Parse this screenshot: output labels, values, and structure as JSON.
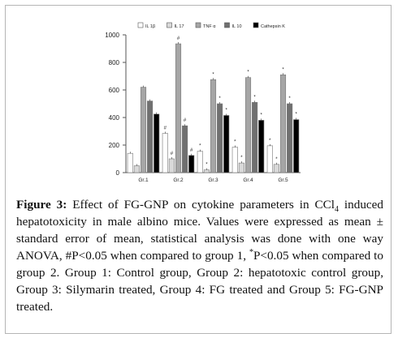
{
  "chart_data": {
    "type": "bar",
    "categories": [
      "Gr.1",
      "Gr.2",
      "Gr.3",
      "Gr.4",
      "Gr.5"
    ],
    "series": [
      {
        "name": "IL 1β",
        "values": [
          140,
          285,
          155,
          185,
          195
        ],
        "marks": [
          "",
          "#",
          "*",
          "*",
          "*"
        ],
        "color": "#ffffff"
      },
      {
        "name": "IL 17",
        "values": [
          50,
          100,
          20,
          70,
          60
        ],
        "marks": [
          "",
          "#",
          "*",
          "*",
          "*"
        ],
        "color": "#d9d9d9"
      },
      {
        "name": "TNF α",
        "values": [
          620,
          935,
          675,
          690,
          710
        ],
        "marks": [
          "",
          "#",
          "*",
          "*",
          "*"
        ],
        "color": "#a6a6a6"
      },
      {
        "name": "IL 10",
        "values": [
          520,
          340,
          500,
          510,
          500
        ],
        "marks": [
          "",
          "#",
          "*",
          "*",
          "*"
        ],
        "color": "#707070"
      },
      {
        "name": "Cathepsin K",
        "values": [
          425,
          125,
          415,
          380,
          385
        ],
        "marks": [
          "",
          "#",
          "*",
          "*",
          "*"
        ],
        "color": "#000000"
      }
    ],
    "y_ticks": [
      "0",
      "200",
      "400",
      "600",
      "800",
      "1000"
    ],
    "ylim": [
      0,
      1000
    ],
    "legend_position": "top",
    "grid": false
  },
  "caption": {
    "label": "Figure 3:",
    "seg1": " Effect of FG-GNP on cytokine parameters in CCl",
    "sub": "4",
    "seg2": " induced hepatotoxicity in male albino mice. Values were expressed as mean ± standard error of mean, statistical analysis was done with one way ANOVA, #P<0.05 when compared to group 1, ",
    "sup": "*",
    "seg3": "P<0.05 when compared to group 2. Group 1: Control group, Group 2: hepatotoxic control group, Group 3: Silymarin treated, Group 4: FG treated and Group 5: FG-GNP treated."
  }
}
